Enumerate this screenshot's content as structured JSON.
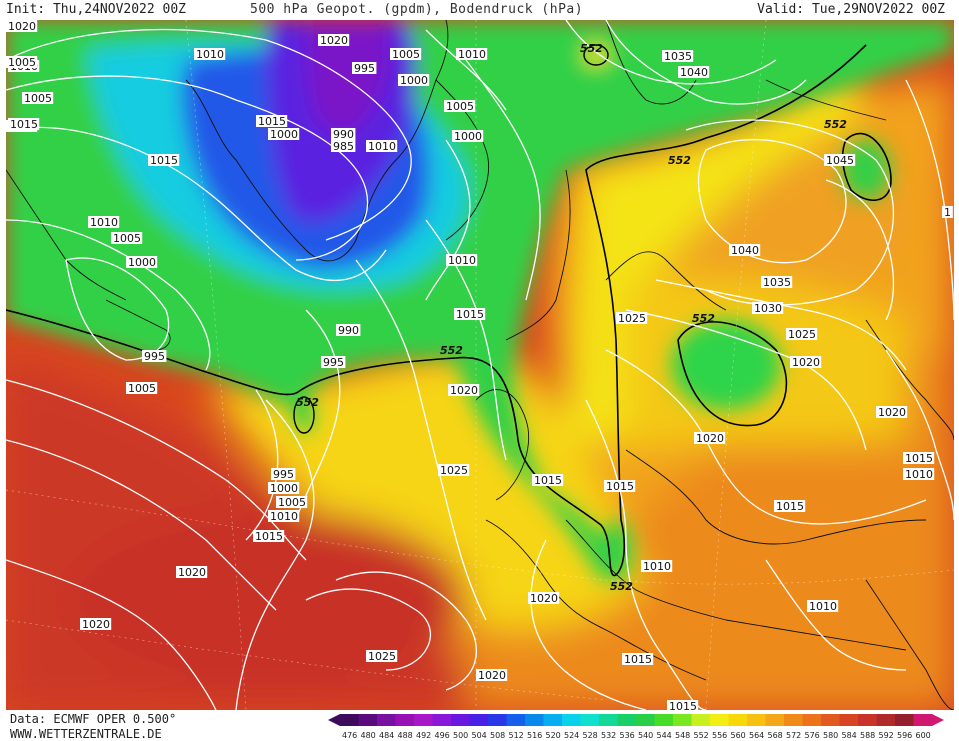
{
  "header": {
    "init": "Init: Thu,24NOV2022 00Z",
    "title": "500 hPa Geopot. (gpdm), Bodendruck (hPa)",
    "valid": "Valid: Tue,29NOV2022 00Z"
  },
  "footer": {
    "data_source": "Data: ECMWF OPER 0.500°",
    "website": "WWW.WETTERZENTRALE.DE"
  },
  "isobar_labels": [
    "1010",
    "1005",
    "1000",
    "995",
    "990",
    "985",
    "1015",
    "1020",
    "1025",
    "1030",
    "1035",
    "1040",
    "1045"
  ],
  "pressure_labels": [
    {
      "id": "p1",
      "text": "1010"
    },
    {
      "id": "p2",
      "text": "1005"
    },
    {
      "id": "p3",
      "text": "1000"
    },
    {
      "id": "p4",
      "text": "1010"
    },
    {
      "id": "p5",
      "text": "1020"
    },
    {
      "id": "p6",
      "text": "1005"
    },
    {
      "id": "p7",
      "text": "1010"
    },
    {
      "id": "p8",
      "text": "1015"
    },
    {
      "id": "p9",
      "text": "995"
    },
    {
      "id": "p10",
      "text": "1000"
    },
    {
      "id": "p11",
      "text": "1005"
    },
    {
      "id": "p12",
      "text": "1000"
    },
    {
      "id": "p13",
      "text": "990"
    },
    {
      "id": "p14",
      "text": "985"
    },
    {
      "id": "p15",
      "text": "1000"
    },
    {
      "id": "p16",
      "text": "1015"
    },
    {
      "id": "p17",
      "text": "1010"
    },
    {
      "id": "p18",
      "text": "1005"
    },
    {
      "id": "p19",
      "text": "1000"
    },
    {
      "id": "p20",
      "text": "995"
    },
    {
      "id": "p21",
      "text": "1005"
    },
    {
      "id": "p22",
      "text": "990"
    },
    {
      "id": "p23",
      "text": "995"
    },
    {
      "id": "p24",
      "text": "1010"
    },
    {
      "id": "p25",
      "text": "1015"
    },
    {
      "id": "p26",
      "text": "1020"
    },
    {
      "id": "p27",
      "text": "995"
    },
    {
      "id": "p28",
      "text": "1000"
    },
    {
      "id": "p29",
      "text": "1005"
    },
    {
      "id": "p30",
      "text": "1010"
    },
    {
      "id": "p31",
      "text": "1015"
    },
    {
      "id": "p32",
      "text": "1025"
    },
    {
      "id": "p33",
      "text": "1020"
    },
    {
      "id": "p34",
      "text": "1020"
    },
    {
      "id": "p35",
      "text": "1025"
    },
    {
      "id": "p36",
      "text": "1015"
    },
    {
      "id": "p37",
      "text": "1015"
    },
    {
      "id": "p38",
      "text": "1020"
    },
    {
      "id": "p39",
      "text": "1010"
    },
    {
      "id": "p40",
      "text": "1020"
    },
    {
      "id": "p41",
      "text": "1015"
    },
    {
      "id": "p42",
      "text": "1015"
    },
    {
      "id": "p43",
      "text": "1010"
    },
    {
      "id": "p44",
      "text": "1035"
    },
    {
      "id": "p45",
      "text": "1040"
    },
    {
      "id": "p46",
      "text": "1045"
    },
    {
      "id": "p47",
      "text": "1040"
    },
    {
      "id": "p48",
      "text": "1035"
    },
    {
      "id": "p49",
      "text": "1030"
    },
    {
      "id": "p50",
      "text": "1025"
    },
    {
      "id": "p51",
      "text": "1025"
    },
    {
      "id": "p52",
      "text": "1020"
    },
    {
      "id": "p53",
      "text": "1020"
    },
    {
      "id": "p54",
      "text": "1020"
    },
    {
      "id": "p55",
      "text": "1015"
    },
    {
      "id": "p56",
      "text": "1010"
    },
    {
      "id": "p57",
      "text": "1015"
    },
    {
      "id": "p58",
      "text": "1010"
    },
    {
      "id": "p59",
      "text": "1015"
    },
    {
      "id": "p60",
      "text": "1020"
    },
    {
      "id": "p61",
      "text": "1005"
    },
    {
      "id": "p62",
      "text": "1"
    }
  ],
  "contour_552_labels": [
    {
      "id": "c1",
      "text": "552"
    },
    {
      "id": "c2",
      "text": "552"
    },
    {
      "id": "c3",
      "text": "552"
    },
    {
      "id": "c4",
      "text": "552"
    },
    {
      "id": "c5",
      "text": "552"
    },
    {
      "id": "c6",
      "text": "552"
    },
    {
      "id": "c7",
      "text": "552"
    }
  ],
  "colorbar": {
    "values": [
      "476",
      "480",
      "484",
      "488",
      "492",
      "496",
      "500",
      "504",
      "508",
      "512",
      "516",
      "520",
      "524",
      "528",
      "532",
      "536",
      "540",
      "544",
      "548",
      "552",
      "556",
      "560",
      "564",
      "568",
      "572",
      "576",
      "580",
      "584",
      "588",
      "592",
      "596",
      "600"
    ],
    "colors": [
      "#3d0a5e",
      "#5a0a7e",
      "#7a10a0",
      "#9612b4",
      "#a818c8",
      "#8a18d8",
      "#6a18e0",
      "#4a20e6",
      "#2838e8",
      "#1460ea",
      "#0a88ec",
      "#08aef0",
      "#0ad2ec",
      "#10e0cc",
      "#14d898",
      "#18d068",
      "#28d048",
      "#48dc28",
      "#7ae820",
      "#c8f020",
      "#f2ee12",
      "#f8d808",
      "#f8c010",
      "#f4a818",
      "#f08a1a",
      "#ec721c",
      "#e25a20",
      "#d84424",
      "#c83428",
      "#b02a2c",
      "#94202e",
      "#d01870"
    ]
  },
  "colors": {
    "purple": "#7a18c8",
    "blue": "#2040e0",
    "cyan": "#14c8ec",
    "green": "#2ed94a",
    "yellow": "#f4ea1a",
    "orange": "#ef9a1e",
    "red": "#c8342a"
  }
}
